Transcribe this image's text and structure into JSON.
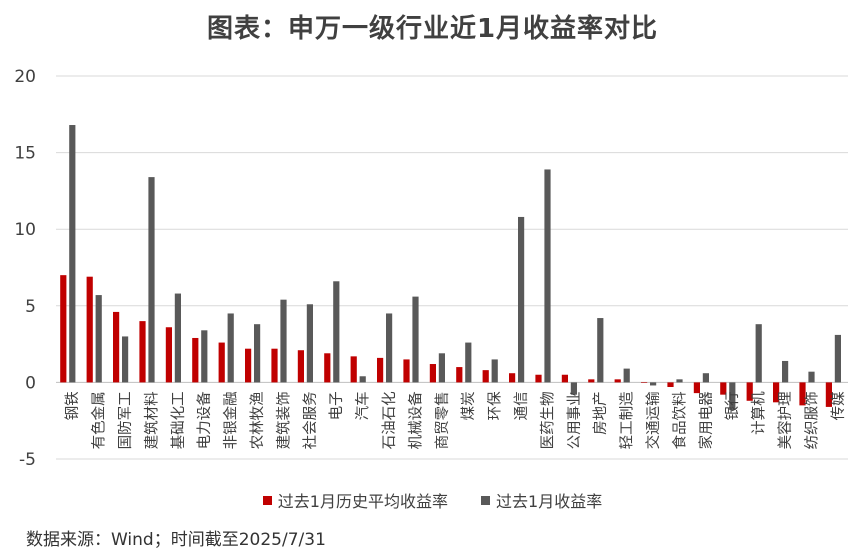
{
  "title": "图表：申万一级行业近1月收益率对比",
  "source_note": "数据来源：Wind；时间截至2025/7/31",
  "colors": {
    "series1": "#C00000",
    "series2": "#595959",
    "grid": "#D9D9D9",
    "zero_line": "#BFBFBF"
  },
  "chart_data": {
    "type": "bar",
    "title": "图表：申万一级行业近1月收益率对比",
    "xlabel": "",
    "ylabel": "",
    "ylim": [
      -5,
      20
    ],
    "yticks": [
      20,
      15,
      10,
      5,
      0,
      -5
    ],
    "grid": true,
    "legend_position": "bottom",
    "categories": [
      "钢铁",
      "有色金属",
      "国防军工",
      "建筑材料",
      "基础化工",
      "电力设备",
      "非银金融",
      "农林牧渔",
      "建筑装饰",
      "社会服务",
      "电子",
      "汽车",
      "石油石化",
      "机械设备",
      "商贸零售",
      "煤炭",
      "环保",
      "通信",
      "医药生物",
      "公用事业",
      "房地产",
      "轻工制造",
      "交通运输",
      "食品饮料",
      "家用电器",
      "银行",
      "计算机",
      "美容护理",
      "纺织服饰",
      "传媒"
    ],
    "series": [
      {
        "name": "过去1月历史平均收益率",
        "values": [
          7.0,
          6.9,
          4.6,
          4.0,
          3.6,
          2.9,
          2.6,
          2.2,
          2.2,
          2.1,
          1.9,
          1.7,
          1.6,
          1.5,
          1.2,
          1.0,
          0.8,
          0.6,
          0.5,
          0.5,
          0.2,
          0.2,
          0.0,
          -0.3,
          -0.7,
          -0.8,
          -1.2,
          -1.3,
          -1.5,
          -1.6
        ]
      },
      {
        "name": "过去1月收益率",
        "values": [
          16.8,
          5.7,
          3.0,
          13.4,
          5.8,
          3.4,
          4.5,
          3.8,
          5.4,
          5.1,
          6.6,
          0.4,
          4.5,
          5.6,
          1.9,
          2.6,
          1.5,
          10.8,
          13.9,
          -0.8,
          4.2,
          0.9,
          -0.2,
          0.2,
          0.6,
          -1.8,
          3.8,
          1.4,
          0.7,
          3.1
        ]
      }
    ]
  }
}
